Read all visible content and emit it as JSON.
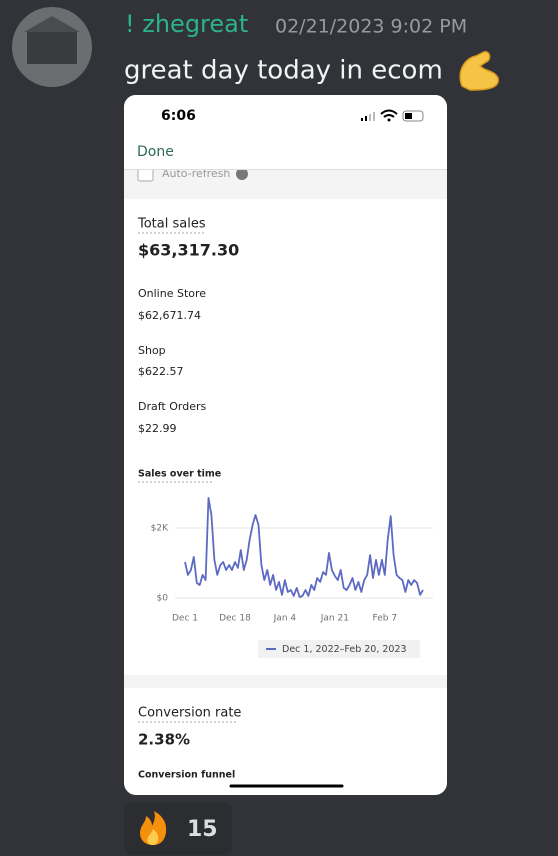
{
  "message": {
    "author": "! zhegreat",
    "timestamp": "02/21/2023 9:02 PM",
    "text": "great day today in ecom"
  },
  "phone": {
    "status_time": "6:06",
    "done": "Done",
    "auto_refresh": "Auto-refresh",
    "total_sales": {
      "label": "Total sales",
      "value": "$63,317.30"
    },
    "channels": [
      {
        "name": "Online Store",
        "value": "$62,671.74"
      },
      {
        "name": "Shop",
        "value": "$622.57"
      },
      {
        "name": "Draft Orders",
        "value": "$22.99"
      }
    ],
    "conversion": {
      "label": "Conversion rate",
      "value": "2.38%",
      "funnel": "Conversion funnel"
    }
  },
  "chart_data": {
    "type": "line",
    "title": "Sales over time",
    "xlim": [
      0,
      81
    ],
    "xticks": [
      {
        "value": 0,
        "label": "Dec 1"
      },
      {
        "value": 17,
        "label": "Dec 18"
      },
      {
        "value": 34,
        "label": "Jan 4"
      },
      {
        "value": 51,
        "label": "Jan 21"
      },
      {
        "value": 68,
        "label": "Feb 7"
      }
    ],
    "ylim": [
      0,
      3000
    ],
    "yticks": [
      {
        "value": 0,
        "label": "$0"
      },
      {
        "value": 2000,
        "label": "$2K"
      }
    ],
    "grid": true,
    "series": [
      {
        "name": "Dec 1, 2022–Feb 20, 2023",
        "color": "#5c6ac4",
        "values": [
          1030,
          660,
          800,
          1170,
          430,
          370,
          660,
          510,
          2860,
          2370,
          1090,
          660,
          940,
          1030,
          800,
          940,
          800,
          1030,
          860,
          1370,
          800,
          1090,
          1660,
          2090,
          2370,
          2090,
          940,
          510,
          800,
          370,
          660,
          230,
          460,
          90,
          510,
          170,
          230,
          60,
          290,
          30,
          60,
          230,
          60,
          370,
          230,
          570,
          460,
          740,
          660,
          1290,
          800,
          630,
          510,
          800,
          290,
          230,
          370,
          570,
          230,
          460,
          170,
          510,
          660,
          1230,
          570,
          1090,
          660,
          1090,
          660,
          1660,
          2340,
          1230,
          660,
          570,
          510,
          170,
          510,
          370,
          510,
          430,
          90,
          230
        ]
      }
    ]
  },
  "reaction": {
    "count": 15
  }
}
